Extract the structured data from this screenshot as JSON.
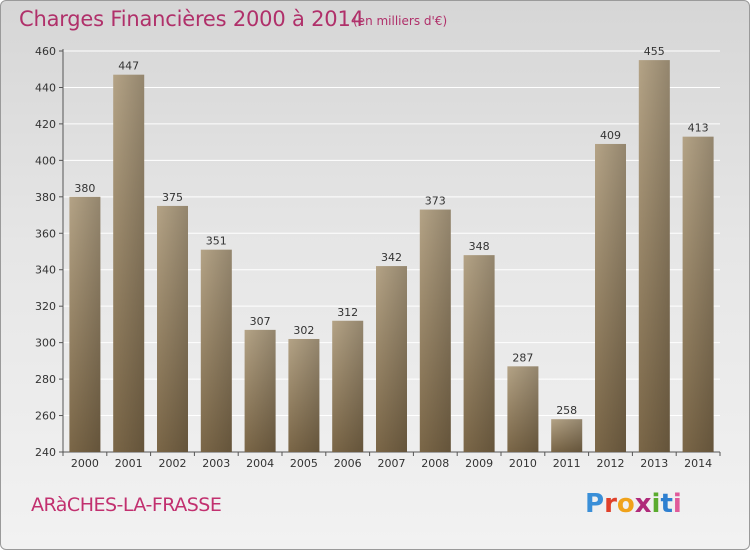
{
  "title": "Charges Financières 2000 à 2014",
  "subtitle": "(en milliers d'€)",
  "commune": "ARàCHES-LA-FRASSE",
  "brand": "Proxiti",
  "colors": {
    "title": "#b0306a",
    "bar_light": "#b4a386",
    "bar_dark": "#7a6647",
    "grid": "#ffffff"
  },
  "chart_data": {
    "type": "bar",
    "categories": [
      "2000",
      "2001",
      "2002",
      "2003",
      "2004",
      "2005",
      "2006",
      "2007",
      "2008",
      "2009",
      "2010",
      "2011",
      "2012",
      "2013",
      "2014"
    ],
    "values": [
      380,
      447,
      375,
      351,
      307,
      302,
      312,
      342,
      373,
      348,
      287,
      258,
      409,
      455,
      413
    ],
    "ylim": [
      240,
      460
    ],
    "yticks": [
      240,
      260,
      280,
      300,
      320,
      340,
      360,
      380,
      400,
      420,
      440,
      460
    ],
    "grid": true,
    "title": "Charges Financières 2000 à 2014",
    "xlabel": "",
    "ylabel": ""
  }
}
